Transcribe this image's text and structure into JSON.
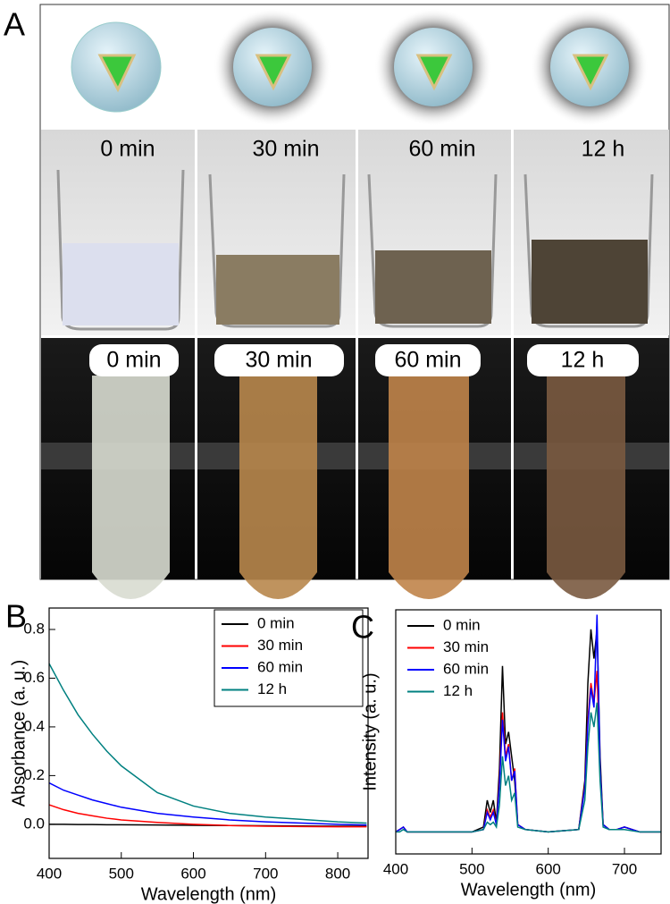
{
  "panel_a": {
    "label": "A",
    "beaker_labels": [
      "0 min",
      "30 min",
      "60 min",
      "12 h"
    ],
    "tube_labels": [
      "0 min",
      "30 min",
      "60 min",
      "12 h"
    ]
  },
  "chart_data": [
    {
      "type": "line",
      "panel": "B",
      "x_label": "Wavelength (nm)",
      "y_label": "Absorbance (a. u.)",
      "x": [
        400,
        420,
        440,
        460,
        480,
        500,
        550,
        600,
        650,
        700,
        750,
        800,
        840
      ],
      "series": [
        {
          "name": "0 min",
          "color": "#000000",
          "values": [
            0.0,
            0.0,
            -0.001,
            -0.001,
            -0.002,
            -0.002,
            -0.003,
            -0.004,
            -0.005,
            -0.006,
            -0.007,
            -0.008,
            -0.008
          ]
        },
        {
          "name": "30 min",
          "color": "#ff0000",
          "values": [
            0.08,
            0.06,
            0.045,
            0.035,
            0.025,
            0.018,
            0.008,
            0.0,
            -0.005,
            -0.008,
            -0.009,
            -0.01,
            -0.01
          ]
        },
        {
          "name": "60 min",
          "color": "#0000ff",
          "values": [
            0.17,
            0.14,
            0.12,
            0.1,
            0.085,
            0.07,
            0.045,
            0.03,
            0.018,
            0.01,
            0.005,
            0.0,
            -0.003
          ]
        },
        {
          "name": "12 h",
          "color": "#008080",
          "values": [
            0.66,
            0.55,
            0.45,
            0.37,
            0.3,
            0.24,
            0.13,
            0.075,
            0.045,
            0.03,
            0.02,
            0.01,
            0.005
          ]
        }
      ],
      "xlim": [
        400,
        842
      ],
      "ylim": [
        -0.14,
        0.888
      ],
      "xticks": [
        400,
        500,
        600,
        700,
        800
      ],
      "yticks": [
        {
          "value": 0,
          "label": "0.0"
        },
        0.2,
        0.4,
        0.6,
        0.8
      ],
      "legend": "upper right"
    },
    {
      "type": "line",
      "panel": "C",
      "x_label": "Wavelength (nm)",
      "y_label": "Intensity (a. u.)",
      "x": [
        400,
        405,
        410,
        415,
        450,
        500,
        515,
        520,
        524,
        528,
        532,
        536,
        540,
        544,
        548,
        552,
        556,
        560,
        570,
        600,
        640,
        648,
        652,
        656,
        660,
        664,
        668,
        672,
        680,
        690,
        700,
        720,
        748
      ],
      "series": [
        {
          "name": "0 min",
          "color": "#000000",
          "values": [
            0.09,
            0.1,
            0.11,
            0.09,
            0.09,
            0.09,
            0.11,
            0.22,
            0.17,
            0.22,
            0.13,
            0.35,
            0.77,
            0.45,
            0.5,
            0.4,
            0.3,
            0.12,
            0.1,
            0.09,
            0.1,
            0.3,
            0.7,
            0.92,
            0.8,
            0.92,
            0.4,
            0.12,
            0.1,
            0.1,
            0.11,
            0.09,
            0.09
          ]
        },
        {
          "name": "30 min",
          "color": "#ff0000",
          "values": [
            0.09,
            0.1,
            0.11,
            0.09,
            0.09,
            0.09,
            0.1,
            0.18,
            0.15,
            0.18,
            0.12,
            0.3,
            0.58,
            0.4,
            0.45,
            0.3,
            0.35,
            0.12,
            0.1,
            0.09,
            0.1,
            0.28,
            0.55,
            0.7,
            0.62,
            0.75,
            0.35,
            0.12,
            0.1,
            0.1,
            0.11,
            0.09,
            0.09
          ]
        },
        {
          "name": "60 min",
          "color": "#0000ff",
          "values": [
            0.09,
            0.1,
            0.11,
            0.09,
            0.09,
            0.09,
            0.1,
            0.17,
            0.14,
            0.17,
            0.12,
            0.28,
            0.55,
            0.38,
            0.44,
            0.3,
            0.34,
            0.12,
            0.1,
            0.09,
            0.1,
            0.27,
            0.53,
            0.68,
            0.6,
            0.98,
            0.35,
            0.12,
            0.1,
            0.1,
            0.11,
            0.09,
            0.09
          ]
        },
        {
          "name": "12 h",
          "color": "#008080",
          "values": [
            0.09,
            0.09,
            0.1,
            0.09,
            0.09,
            0.09,
            0.1,
            0.13,
            0.12,
            0.13,
            0.11,
            0.2,
            0.4,
            0.28,
            0.32,
            0.22,
            0.25,
            0.11,
            0.1,
            0.09,
            0.1,
            0.22,
            0.44,
            0.58,
            0.52,
            0.62,
            0.3,
            0.11,
            0.1,
            0.1,
            0.1,
            0.09,
            0.09
          ]
        }
      ],
      "xlim": [
        400,
        748
      ],
      "ylim": [
        0,
        1
      ],
      "xticks": [
        400,
        500,
        600,
        700
      ],
      "legend": "upper left"
    }
  ]
}
